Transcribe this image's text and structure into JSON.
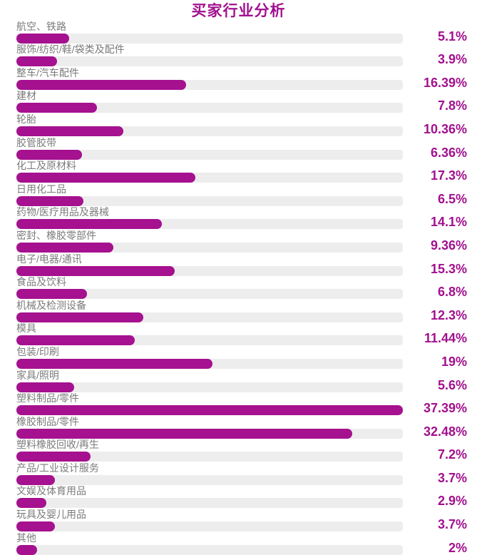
{
  "title": "买家行业分析",
  "chart_data": {
    "type": "bar",
    "orientation": "horizontal",
    "title": "买家行业分析",
    "xlabel": "",
    "ylabel": "",
    "xlim": [
      0,
      37.39
    ],
    "grid": false,
    "legend": false,
    "bar_color": "#a5118f",
    "track_color": "#ededed",
    "label_color": "#7b7b7b",
    "accent_color": "#a1108e",
    "categories": [
      "航空、铁路",
      "服饰/纺织/鞋/袋类及配件",
      "整车/汽车配件",
      "建材",
      "轮胎",
      "胶管胶带",
      "化工及原材料",
      "日用化工品",
      "药物/医疗用品及器械",
      "密封、橡胶零部件",
      "电子/电器/通讯",
      "食品及饮料",
      "机械及检测设备",
      "模具",
      "包装/印刷",
      "家具/照明",
      "塑料制品/零件",
      "橡胶制品/零件",
      "塑料橡胶回收/再生",
      "产品/工业设计服务",
      "文娱及体育用品",
      "玩具及婴儿用品",
      "其他"
    ],
    "values": [
      5.1,
      3.9,
      16.39,
      7.8,
      10.36,
      6.36,
      17.3,
      6.5,
      14.1,
      9.36,
      15.3,
      6.8,
      12.3,
      11.44,
      19,
      5.6,
      37.39,
      32.48,
      7.2,
      3.7,
      2.9,
      3.7,
      2
    ],
    "value_labels": [
      "5.1%",
      "3.9%",
      "16.39%",
      "7.8%",
      "10.36%",
      "6.36%",
      "17.3%",
      "6.5%",
      "14.1%",
      "9.36%",
      "15.3%",
      "6.8%",
      "12.3%",
      "11.44%",
      "19%",
      "5.6%",
      "37.39%",
      "32.48%",
      "7.2%",
      "3.7%",
      "2.9%",
      "3.7%",
      "2%"
    ]
  }
}
